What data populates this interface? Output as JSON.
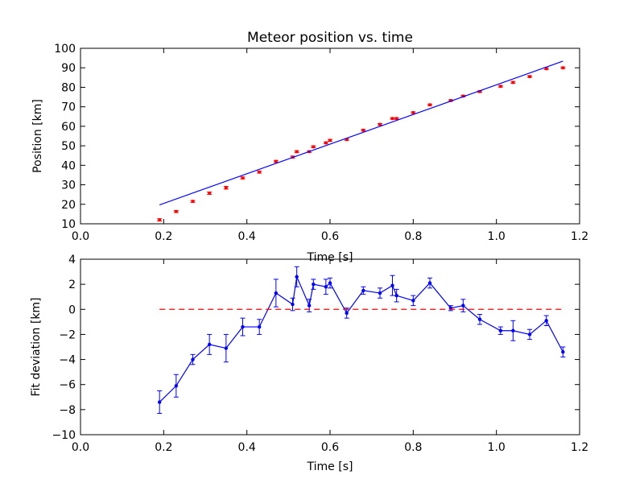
{
  "chart_data": [
    {
      "type": "scatter",
      "title": "Meteor position vs. time",
      "xlabel": "Time [s]",
      "ylabel": "Position [km]",
      "xlim": [
        0.0,
        1.2
      ],
      "ylim": [
        10,
        100
      ],
      "xticks": [
        "0.0",
        "0.2",
        "0.4",
        "0.6",
        "0.8",
        "1.0",
        "1.2"
      ],
      "yticks": [
        "10",
        "20",
        "30",
        "40",
        "50",
        "60",
        "70",
        "80",
        "90",
        "100"
      ],
      "grid": false,
      "colors": {
        "points": "#ff0000",
        "fit": "#0000ff"
      },
      "series": [
        {
          "kind": "errorbar-points",
          "x": [
            0.19,
            0.23,
            0.27,
            0.31,
            0.35,
            0.39,
            0.43,
            0.47,
            0.51,
            0.52,
            0.55,
            0.56,
            0.59,
            0.6,
            0.64,
            0.68,
            0.72,
            0.75,
            0.76,
            0.8,
            0.84,
            0.89,
            0.92,
            0.96,
            1.01,
            1.04,
            1.08,
            1.12,
            1.16
          ],
          "y": [
            12.0,
            16.3,
            21.5,
            25.7,
            28.5,
            33.5,
            36.5,
            42.0,
            44.2,
            47.0,
            47.0,
            49.5,
            51.5,
            52.8,
            53.2,
            58.0,
            61.0,
            64.0,
            64.0,
            67.0,
            71.0,
            73.2,
            75.5,
            77.8,
            80.5,
            82.5,
            85.5,
            89.5,
            90.0
          ],
          "yerr": [
            0.6,
            0.5,
            0.5,
            0.6,
            0.7,
            0.5,
            0.5,
            0.5,
            0.5,
            0.5,
            0.4,
            0.5,
            0.5,
            0.5,
            0.4,
            0.4,
            0.4,
            0.4,
            0.4,
            0.4,
            0.4,
            0.4,
            0.4,
            0.4,
            0.4,
            0.5,
            0.4,
            0.4,
            0.4
          ]
        },
        {
          "kind": "fit-line",
          "x": [
            0.19,
            1.16
          ],
          "y": [
            19.7,
            93.4
          ]
        }
      ]
    },
    {
      "type": "line",
      "xlabel": "Time [s]",
      "ylabel": "Fit deviation [km]",
      "xlim": [
        0.0,
        1.2
      ],
      "ylim": [
        -10,
        4
      ],
      "xticks": [
        "0.0",
        "0.2",
        "0.4",
        "0.6",
        "0.8",
        "1.0",
        "1.2"
      ],
      "yticks": [
        "−10",
        "−8",
        "−6",
        "−4",
        "−2",
        "0",
        "2",
        "4"
      ],
      "grid": false,
      "colors": {
        "line": "#0000ff",
        "zero": "#ff0000"
      },
      "series": [
        {
          "kind": "errorbar-line",
          "x": [
            0.19,
            0.23,
            0.27,
            0.31,
            0.35,
            0.39,
            0.43,
            0.47,
            0.51,
            0.52,
            0.55,
            0.56,
            0.59,
            0.6,
            0.64,
            0.68,
            0.72,
            0.75,
            0.76,
            0.8,
            0.84,
            0.89,
            0.92,
            0.96,
            1.01,
            1.04,
            1.08,
            1.12,
            1.16
          ],
          "y": [
            -7.4,
            -6.1,
            -4.0,
            -2.8,
            -3.1,
            -1.4,
            -1.4,
            1.3,
            0.4,
            2.6,
            0.3,
            2.0,
            1.8,
            2.1,
            -0.3,
            1.5,
            1.3,
            1.9,
            1.1,
            0.7,
            2.1,
            0.1,
            0.3,
            -0.8,
            -1.7,
            -1.7,
            -2.0,
            -0.9,
            -3.4
          ],
          "yerr": [
            0.9,
            0.9,
            0.4,
            0.8,
            1.1,
            0.7,
            0.6,
            1.1,
            0.5,
            0.8,
            0.5,
            0.4,
            0.6,
            0.4,
            0.4,
            0.3,
            0.4,
            0.8,
            0.5,
            0.4,
            0.4,
            0.2,
            0.5,
            0.4,
            0.3,
            0.8,
            0.4,
            0.4,
            0.4
          ]
        },
        {
          "kind": "zero-line",
          "x": [
            0.19,
            1.16
          ],
          "y": [
            0,
            0
          ]
        }
      ]
    }
  ]
}
